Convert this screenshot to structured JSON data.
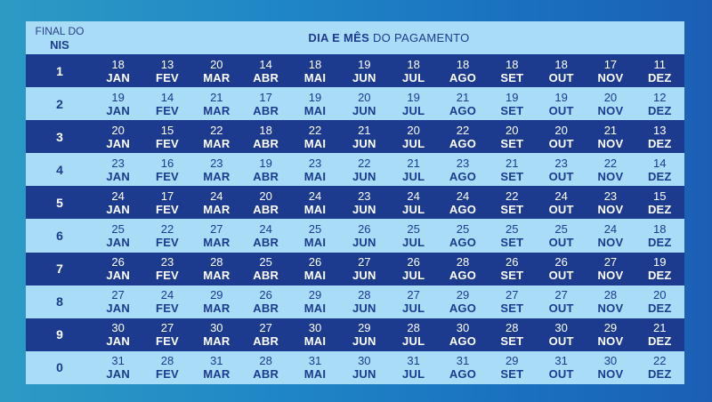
{
  "header": {
    "nis_line1": "FINAL DO",
    "nis_line2": "NIS",
    "title_bold": "DIA E MÊS",
    "title_rest": " DO PAGAMENTO"
  },
  "rows": [
    {
      "nis": "1",
      "cells": [
        [
          "18",
          "JAN"
        ],
        [
          "13",
          "FEV"
        ],
        [
          "20",
          "MAR"
        ],
        [
          "14",
          "ABR"
        ],
        [
          "18",
          "MAI"
        ],
        [
          "19",
          "JUN"
        ],
        [
          "18",
          "JUL"
        ],
        [
          "18",
          "AGO"
        ],
        [
          "18",
          "SET"
        ],
        [
          "18",
          "OUT"
        ],
        [
          "17",
          "NOV"
        ],
        [
          "11",
          "DEZ"
        ]
      ]
    },
    {
      "nis": "2",
      "cells": [
        [
          "19",
          "JAN"
        ],
        [
          "14",
          "FEV"
        ],
        [
          "21",
          "MAR"
        ],
        [
          "17",
          "ABR"
        ],
        [
          "19",
          "MAI"
        ],
        [
          "20",
          "JUN"
        ],
        [
          "19",
          "JUL"
        ],
        [
          "21",
          "AGO"
        ],
        [
          "19",
          "SET"
        ],
        [
          "19",
          "OUT"
        ],
        [
          "20",
          "NOV"
        ],
        [
          "12",
          "DEZ"
        ]
      ]
    },
    {
      "nis": "3",
      "cells": [
        [
          "20",
          "JAN"
        ],
        [
          "15",
          "FEV"
        ],
        [
          "22",
          "MAR"
        ],
        [
          "18",
          "ABR"
        ],
        [
          "22",
          "MAI"
        ],
        [
          "21",
          "JUN"
        ],
        [
          "20",
          "JUL"
        ],
        [
          "22",
          "AGO"
        ],
        [
          "20",
          "SET"
        ],
        [
          "20",
          "OUT"
        ],
        [
          "21",
          "NOV"
        ],
        [
          "13",
          "DEZ"
        ]
      ]
    },
    {
      "nis": "4",
      "cells": [
        [
          "23",
          "JAN"
        ],
        [
          "16",
          "FEV"
        ],
        [
          "23",
          "MAR"
        ],
        [
          "19",
          "ABR"
        ],
        [
          "23",
          "MAI"
        ],
        [
          "22",
          "JUN"
        ],
        [
          "21",
          "JUL"
        ],
        [
          "23",
          "AGO"
        ],
        [
          "21",
          "SET"
        ],
        [
          "23",
          "OUT"
        ],
        [
          "22",
          "NOV"
        ],
        [
          "14",
          "DEZ"
        ]
      ]
    },
    {
      "nis": "5",
      "cells": [
        [
          "24",
          "JAN"
        ],
        [
          "17",
          "FEV"
        ],
        [
          "24",
          "MAR"
        ],
        [
          "20",
          "ABR"
        ],
        [
          "24",
          "MAI"
        ],
        [
          "23",
          "JUN"
        ],
        [
          "24",
          "JUL"
        ],
        [
          "24",
          "AGO"
        ],
        [
          "22",
          "SET"
        ],
        [
          "24",
          "OUT"
        ],
        [
          "23",
          "NOV"
        ],
        [
          "15",
          "DEZ"
        ]
      ]
    },
    {
      "nis": "6",
      "cells": [
        [
          "25",
          "JAN"
        ],
        [
          "22",
          "FEV"
        ],
        [
          "27",
          "MAR"
        ],
        [
          "24",
          "ABR"
        ],
        [
          "25",
          "MAI"
        ],
        [
          "26",
          "JUN"
        ],
        [
          "25",
          "JUL"
        ],
        [
          "25",
          "AGO"
        ],
        [
          "25",
          "SET"
        ],
        [
          "25",
          "OUT"
        ],
        [
          "24",
          "NOV"
        ],
        [
          "18",
          "DEZ"
        ]
      ]
    },
    {
      "nis": "7",
      "cells": [
        [
          "26",
          "JAN"
        ],
        [
          "23",
          "FEV"
        ],
        [
          "28",
          "MAR"
        ],
        [
          "25",
          "ABR"
        ],
        [
          "26",
          "MAI"
        ],
        [
          "27",
          "JUN"
        ],
        [
          "26",
          "JUL"
        ],
        [
          "28",
          "AGO"
        ],
        [
          "26",
          "SET"
        ],
        [
          "26",
          "OUT"
        ],
        [
          "27",
          "NOV"
        ],
        [
          "19",
          "DEZ"
        ]
      ]
    },
    {
      "nis": "8",
      "cells": [
        [
          "27",
          "JAN"
        ],
        [
          "24",
          "FEV"
        ],
        [
          "29",
          "MAR"
        ],
        [
          "26",
          "ABR"
        ],
        [
          "29",
          "MAI"
        ],
        [
          "28",
          "JUN"
        ],
        [
          "27",
          "JUL"
        ],
        [
          "29",
          "AGO"
        ],
        [
          "27",
          "SET"
        ],
        [
          "27",
          "OUT"
        ],
        [
          "28",
          "NOV"
        ],
        [
          "20",
          "DEZ"
        ]
      ]
    },
    {
      "nis": "9",
      "cells": [
        [
          "30",
          "JAN"
        ],
        [
          "27",
          "FEV"
        ],
        [
          "30",
          "MAR"
        ],
        [
          "27",
          "ABR"
        ],
        [
          "30",
          "MAI"
        ],
        [
          "29",
          "JUN"
        ],
        [
          "28",
          "JUL"
        ],
        [
          "30",
          "AGO"
        ],
        [
          "28",
          "SET"
        ],
        [
          "30",
          "OUT"
        ],
        [
          "29",
          "NOV"
        ],
        [
          "21",
          "DEZ"
        ]
      ]
    },
    {
      "nis": "0",
      "cells": [
        [
          "31",
          "JAN"
        ],
        [
          "28",
          "FEV"
        ],
        [
          "31",
          "MAR"
        ],
        [
          "28",
          "ABR"
        ],
        [
          "31",
          "MAI"
        ],
        [
          "30",
          "JUN"
        ],
        [
          "31",
          "JUL"
        ],
        [
          "31",
          "AGO"
        ],
        [
          "29",
          "SET"
        ],
        [
          "31",
          "OUT"
        ],
        [
          "30",
          "NOV"
        ],
        [
          "22",
          "DEZ"
        ]
      ]
    }
  ]
}
